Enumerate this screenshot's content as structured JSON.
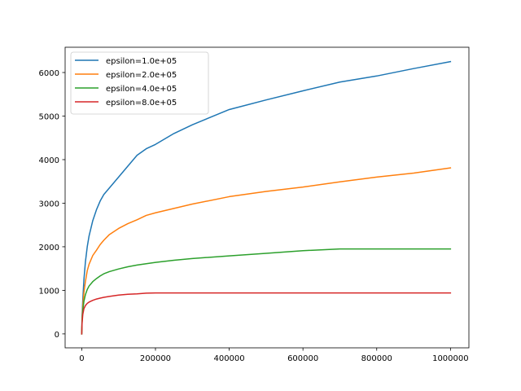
{
  "chart_data": {
    "type": "line",
    "title": "",
    "xlabel": "",
    "ylabel": "",
    "xlim": [
      -45000,
      1050000
    ],
    "ylim": [
      -320,
      6580
    ],
    "x_ticks": [
      0,
      200000,
      400000,
      600000,
      800000,
      1000000
    ],
    "x_tick_labels": [
      "0",
      "200000",
      "400000",
      "600000",
      "800000",
      "1000000"
    ],
    "y_ticks": [
      0,
      1000,
      2000,
      3000,
      4000,
      5000,
      6000
    ],
    "y_tick_labels": [
      "0",
      "1000",
      "2000",
      "3000",
      "4000",
      "5000",
      "6000"
    ],
    "grid": false,
    "legend_position": "top-left",
    "series": [
      {
        "name": "epsilon=1.0e+05",
        "color": "#1f77b4",
        "x": [
          0,
          1000,
          3000,
          6000,
          10000,
          15000,
          20000,
          30000,
          40000,
          50000,
          60000,
          75000,
          100000,
          125000,
          150000,
          175000,
          200000,
          250000,
          300000,
          400000,
          500000,
          600000,
          700000,
          800000,
          900000,
          1000000
        ],
        "y": [
          0,
          400,
          800,
          1250,
          1650,
          2000,
          2250,
          2600,
          2850,
          3050,
          3200,
          3350,
          3600,
          3850,
          4100,
          4250,
          4350,
          4600,
          4800,
          5150,
          5370,
          5580,
          5780,
          5920,
          6090,
          6250
        ]
      },
      {
        "name": "epsilon=2.0e+05",
        "color": "#ff7f0e",
        "x": [
          0,
          1000,
          3000,
          6000,
          10000,
          15000,
          20000,
          30000,
          40000,
          50000,
          60000,
          75000,
          100000,
          125000,
          150000,
          175000,
          200000,
          250000,
          300000,
          400000,
          500000,
          600000,
          700000,
          800000,
          900000,
          1000000
        ],
        "y": [
          0,
          350,
          650,
          950,
          1200,
          1450,
          1600,
          1800,
          1920,
          2050,
          2150,
          2280,
          2420,
          2530,
          2620,
          2720,
          2780,
          2880,
          2980,
          3150,
          3270,
          3370,
          3490,
          3600,
          3690,
          3810
        ]
      },
      {
        "name": "epsilon=4.0e+05",
        "color": "#2ca02c",
        "x": [
          0,
          1000,
          3000,
          6000,
          10000,
          15000,
          20000,
          30000,
          40000,
          50000,
          60000,
          75000,
          100000,
          125000,
          150000,
          175000,
          200000,
          250000,
          300000,
          400000,
          500000,
          600000,
          700000,
          800000,
          900000,
          1000000
        ],
        "y": [
          0,
          300,
          550,
          750,
          900,
          1020,
          1100,
          1200,
          1270,
          1330,
          1380,
          1430,
          1490,
          1540,
          1580,
          1610,
          1640,
          1690,
          1730,
          1790,
          1850,
          1910,
          1950,
          1950,
          1950,
          1950
        ]
      },
      {
        "name": "epsilon=8.0e+05",
        "color": "#d62728",
        "x": [
          0,
          1000,
          3000,
          6000,
          10000,
          15000,
          20000,
          30000,
          40000,
          50000,
          60000,
          75000,
          100000,
          125000,
          150000,
          175000,
          200000,
          300000,
          400000,
          500000,
          600000,
          700000,
          800000,
          900000,
          1000000
        ],
        "y": [
          0,
          250,
          450,
          580,
          650,
          700,
          730,
          770,
          800,
          820,
          840,
          860,
          890,
          910,
          920,
          935,
          940,
          940,
          940,
          940,
          940,
          940,
          940,
          940,
          940
        ]
      }
    ]
  }
}
